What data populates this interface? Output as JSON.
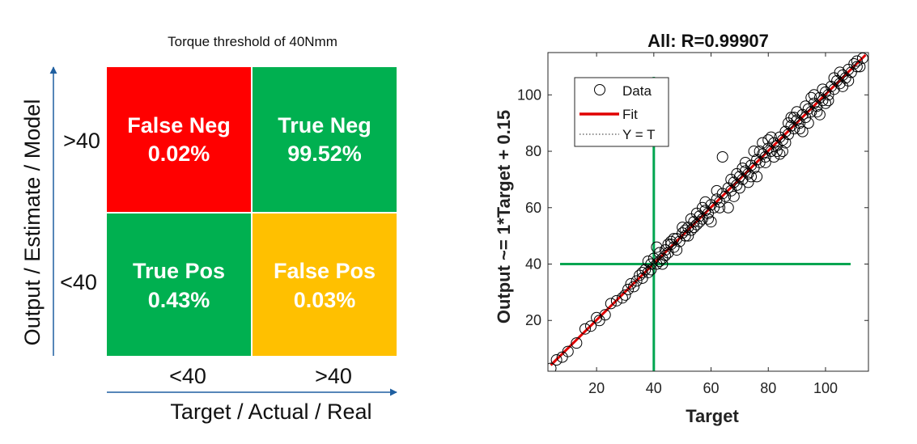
{
  "chart_data": [
    {
      "type": "heatmap",
      "title": "Torque threshold of 40Nmm",
      "xlabel": "Target / Actual / Real",
      "ylabel": "Output / Estimate / Model",
      "x_categories": [
        "<40",
        ">40"
      ],
      "y_categories": [
        ">40",
        "<40"
      ],
      "cells": [
        {
          "name": "False Neg",
          "value": "0.02%",
          "row": ">40",
          "col": "<40",
          "color": "#ff0000"
        },
        {
          "name": "True Neg",
          "value": "99.52%",
          "row": ">40",
          "col": ">40",
          "color": "#00b050"
        },
        {
          "name": "True Pos",
          "value": "0.43%",
          "row": "<40",
          "col": "<40",
          "color": "#00b050"
        },
        {
          "name": "False Pos",
          "value": "0.03%",
          "row": "<40",
          "col": ">40",
          "color": "#ffc000"
        }
      ],
      "axis_arrow_color": "#1f5fa0"
    },
    {
      "type": "scatter",
      "title": "All: R=0.99907",
      "xlabel": "Target",
      "ylabel": "Output ~= 1*Target + 0.15",
      "xlim": [
        3,
        115
      ],
      "ylim": [
        2,
        115
      ],
      "xticks": [
        20,
        40,
        60,
        80,
        100
      ],
      "yticks": [
        20,
        40,
        60,
        80,
        100
      ],
      "legend": {
        "placement": "top-left",
        "entries": [
          "Data",
          "Fit",
          "Y = T"
        ]
      },
      "fit": {
        "slope": 1,
        "intercept": 0.15,
        "color": "#e00000"
      },
      "threshold": {
        "value": 40,
        "color": "#00a550"
      },
      "series": [
        {
          "name": "Data",
          "points": [
            [
              4,
              3
            ],
            [
              6,
              6
            ],
            [
              8,
              7
            ],
            [
              10,
              9
            ],
            [
              13,
              12
            ],
            [
              16,
              17
            ],
            [
              18,
              18
            ],
            [
              21,
              20
            ],
            [
              23,
              22
            ],
            [
              25,
              26
            ],
            [
              27,
              27
            ],
            [
              29,
              28
            ],
            [
              31,
              31
            ],
            [
              32,
              33
            ],
            [
              34,
              34
            ],
            [
              35,
              36
            ],
            [
              36,
              35
            ],
            [
              37,
              38
            ],
            [
              38,
              37
            ],
            [
              39,
              40
            ],
            [
              40,
              42
            ],
            [
              41,
              40
            ],
            [
              42,
              44
            ],
            [
              43,
              42
            ],
            [
              44,
              45
            ],
            [
              45,
              44
            ],
            [
              46,
              47
            ],
            [
              47,
              46
            ],
            [
              48,
              49
            ],
            [
              49,
              48
            ],
            [
              50,
              51
            ],
            [
              51,
              50
            ],
            [
              52,
              53
            ],
            [
              53,
              52
            ],
            [
              54,
              55
            ],
            [
              55,
              54
            ],
            [
              56,
              57
            ],
            [
              57,
              56
            ],
            [
              58,
              59
            ],
            [
              59,
              58
            ],
            [
              60,
              61
            ],
            [
              61,
              60
            ],
            [
              62,
              63
            ],
            [
              63,
              62
            ],
            [
              64,
              65
            ],
            [
              65,
              64
            ],
            [
              66,
              67
            ],
            [
              67,
              66
            ],
            [
              68,
              69
            ],
            [
              69,
              68
            ],
            [
              70,
              71
            ],
            [
              71,
              70
            ],
            [
              72,
              73
            ],
            [
              73,
              72
            ],
            [
              74,
              75
            ],
            [
              75,
              74
            ],
            [
              76,
              77
            ],
            [
              77,
              76
            ],
            [
              78,
              79
            ],
            [
              79,
              78
            ],
            [
              80,
              81
            ],
            [
              81,
              80
            ],
            [
              82,
              83
            ],
            [
              83,
              82
            ],
            [
              84,
              85
            ],
            [
              85,
              84
            ],
            [
              86,
              87
            ],
            [
              87,
              86
            ],
            [
              88,
              89
            ],
            [
              89,
              88
            ],
            [
              90,
              91
            ],
            [
              91,
              90
            ],
            [
              92,
              93
            ],
            [
              93,
              92
            ],
            [
              94,
              95
            ],
            [
              95,
              94
            ],
            [
              96,
              97
            ],
            [
              97,
              96
            ],
            [
              98,
              99
            ],
            [
              99,
              98
            ],
            [
              100,
              101
            ],
            [
              101,
              100
            ],
            [
              102,
              103
            ],
            [
              103,
              102
            ],
            [
              104,
              105
            ],
            [
              105,
              104
            ],
            [
              106,
              107
            ],
            [
              107,
              106
            ],
            [
              108,
              109
            ],
            [
              109,
              108
            ],
            [
              110,
              111
            ],
            [
              111,
              110
            ],
            [
              113,
              113
            ],
            [
              64,
              78
            ],
            [
              70,
              67
            ],
            [
              82,
              78
            ],
            [
              75,
              80
            ],
            [
              58,
              62
            ],
            [
              66,
              60
            ],
            [
              88,
              92
            ],
            [
              92,
              87
            ],
            [
              55,
              58
            ],
            [
              60,
              55
            ],
            [
              44,
              43
            ],
            [
              41,
              46
            ],
            [
              38,
              41
            ],
            [
              43,
              40
            ],
            [
              78,
              83
            ],
            [
              85,
              80
            ],
            [
              95,
              99
            ],
            [
              98,
              93
            ],
            [
              72,
              76
            ],
            [
              76,
              71
            ],
            [
              20,
              21
            ],
            [
              30,
              29
            ],
            [
              33,
              32
            ],
            [
              47,
              49
            ],
            [
              52,
              50
            ],
            [
              62,
              66
            ],
            [
              68,
              64
            ],
            [
              80,
              84
            ],
            [
              84,
              79
            ],
            [
              90,
              94
            ],
            [
              94,
              90
            ],
            [
              100,
              97
            ],
            [
              103,
              106
            ],
            [
              106,
              103
            ],
            [
              57,
              60
            ],
            [
              67,
              70
            ],
            [
              73,
              69
            ],
            [
              87,
              90
            ],
            [
              96,
              100
            ],
            [
              50,
              53
            ],
            [
              45,
              47
            ],
            [
              48,
              45
            ],
            [
              53,
              56
            ],
            [
              59,
              56
            ],
            [
              63,
              60
            ],
            [
              69,
              72
            ],
            [
              71,
              74
            ],
            [
              74,
              71
            ],
            [
              77,
              80
            ],
            [
              79,
              76
            ],
            [
              81,
              85
            ],
            [
              83,
              80
            ],
            [
              86,
              83
            ],
            [
              89,
              92
            ],
            [
              91,
              88
            ],
            [
              93,
              96
            ],
            [
              97,
              94
            ],
            [
              99,
              102
            ],
            [
              101,
              98
            ],
            [
              105,
              108
            ],
            [
              108,
              105
            ],
            [
              111,
              112
            ],
            [
              112,
              110
            ],
            [
              36,
              37
            ],
            [
              39,
              38
            ],
            [
              42,
              41
            ],
            [
              46,
              48
            ],
            [
              51,
              52
            ],
            [
              54,
              53
            ],
            [
              56,
              55
            ]
          ]
        }
      ]
    }
  ]
}
